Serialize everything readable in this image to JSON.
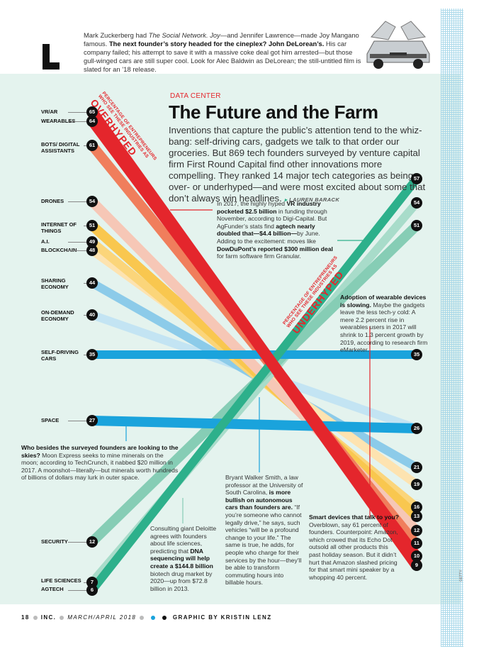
{
  "intro": {
    "drop_letter": "L",
    "p1": "Mark Zuckerberg had ",
    "p1_i1": "The Social Network.",
    "p1_i2": " Joy",
    "p1_b": "—and Jennifer Lawrence—made Joy Mangano famous. ",
    "p2_b": "The next founder’s story headed for the cineplex? John DeLorean’s.",
    "p3": " His car company failed; his attempt to save it with a massive coke deal got him arrested—but those gull-winged cars are still super cool. Look for Alec Baldwin as DeLorean; the still-untitled film is slated for an ’18 release."
  },
  "header": {
    "kicker": "DATA CENTER",
    "title": "The Future and the Farm",
    "deck": "Inventions that capture the public’s attention tend to the whiz-bang: self-driving cars, gadgets we talk to that order our groceries. But 869 tech founders surveyed by venture capital firm First Round Capital find other innovations more compelling. They ranked 14 major tech categories as being over- or underhyped—and were most excited about some that don’t always win headlines.",
    "credit": "LAUREN BARACK"
  },
  "axis_labels": {
    "over_small1": "PERCENTAGE OF ENTREPRENEURS",
    "over_small2": "WHO SEE THESE INDUSTRIES AS",
    "over_big": "OVERHYPED",
    "under_small1": "PERCENTAGE OF ENTREPRENEURS",
    "under_small2": "WHO SEE THESE INDUSTRIES AS",
    "under_big": "UNDERHYPED"
  },
  "categories": [
    {
      "name": "VR/AR",
      "over": 65,
      "under": 9,
      "color": "#e4262c"
    },
    {
      "name": "WEARABLES",
      "over": 64,
      "under": 10,
      "color": "#e4262c"
    },
    {
      "name": "BOTS/ DIGITAL ASSISTANTS",
      "over": 61,
      "under": 11,
      "color": "#f07e5c"
    },
    {
      "name": "DRONES",
      "over": 54,
      "under": 12,
      "color": "#f6c7b6"
    },
    {
      "name": "INTERNET OF THINGS",
      "over": 51,
      "under": 13,
      "color": "#f9c74f"
    },
    {
      "name": "A.I.",
      "over": 49,
      "under": 16,
      "color": "#fbd57a"
    },
    {
      "name": "BLOCKCHAIN",
      "over": 48,
      "under": 19,
      "color": "#fde3b0"
    },
    {
      "name": "SHARING ECONOMY",
      "over": 44,
      "under": 21,
      "color": "#8ccbe9"
    },
    {
      "name": "ON-DEMAND ECONOMY",
      "over": 40,
      "under": 26,
      "color": "#c3e4f3"
    },
    {
      "name": "SELF-DRIVING CARS",
      "over": 35,
      "under": 35,
      "color": "#1aa3dc"
    },
    {
      "name": "SPACE",
      "over": 27,
      "under": 26,
      "color": "#1aa3dc"
    },
    {
      "name": "SECURITY",
      "over": 12,
      "under": 51,
      "color": "#86cdb5"
    },
    {
      "name": "LIFE SCIENCES",
      "over": 7,
      "under": 54,
      "color": "#a8dcca"
    },
    {
      "name": "AGTECH",
      "over": 6,
      "under": 57,
      "color": "#2db08b"
    }
  ],
  "right_badges": [
    "57",
    "54",
    "51",
    "35",
    "26",
    "21",
    "19",
    "16",
    "13",
    "12",
    "11",
    "10",
    "9"
  ],
  "notes": {
    "vr": "In 2017, the highly hyped <b>VR industry pocketed $2.5 billion</b> in funding through November, according to Digi-Capital. But AgFunder’s stats find <b>agtech nearly doubled that—$4.4 billion—</b>by June. Adding to the excitement: moves like <b>DowDuPont’s reported $300 million deal</b> for farm software firm Granular.",
    "wearables": "<b>Adoption of wearable devices is slowing.</b> Maybe the gadgets leave the less tech-y cold: A mere 2.2 percent rise in wearables users in 2017 will shrink to 1.3 percent growth by 2019, according to research firm eMarketer.",
    "space": "<b>Who besides the surveyed founders are looking to the skies?</b> Moon Express seeks to mine minerals on the moon; according to TechCrunch, it nabbed $20 million in 2017. A moonshot—literally—but minerals worth hundreds of billions of dollars may lurk in outer space.",
    "bryant": "Bryant Walker Smith, a law professor at the University of South Carolina, <b>is more bullish on autonomous cars than founders are.</b> “If you’re someone who cannot legally drive,” he says, such vehicles “will be a profound change to your life.” The same is true, he adds, for people who charge for their services by the hour—they’ll be able to transform commuting hours into billable hours.",
    "deloitte": "Consulting giant Deloitte agrees with founders about life sciences, predicting that <b>DNA sequencing will help create a $144.8 billion</b> biotech drug market by 2020—up from $72.8 billion in 2013.",
    "smart": "<b>Smart devices that talk to you?</b> Overblown, say 61 percent of founders. Counterpoint: Amazon, which crowed that its Echo Dot outsold all other products this past holiday season. But it didn’t hurt that Amazon slashed pricing for that smart mini speaker by a whopping 40 percent."
  },
  "footer": {
    "page": "18",
    "mag": "INC.",
    "issue": "MARCH/APRIL 2018",
    "credit": "GRAPHIC BY KRISTIN LENZ"
  },
  "photo_credit": "GETTY"
}
